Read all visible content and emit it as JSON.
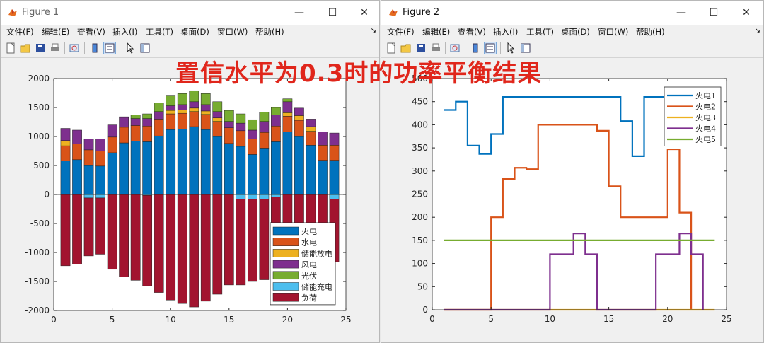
{
  "overlay_title": "置信水平为0.3时的功率平衡结果",
  "menu_labels": [
    "文件(F)",
    "编辑(E)",
    "查看(V)",
    "插入(I)",
    "工具(T)",
    "桌面(D)",
    "窗口(W)",
    "帮助(H)"
  ],
  "window_controls": {
    "minimize": "—",
    "maximize": "☐",
    "close": "✕"
  },
  "figure1": {
    "title": "Figure 1",
    "chart_data": {
      "type": "bar",
      "stacked": true,
      "x": [
        1,
        2,
        3,
        4,
        5,
        6,
        7,
        8,
        9,
        10,
        11,
        12,
        13,
        14,
        15,
        16,
        17,
        18,
        19,
        20,
        21,
        22,
        23,
        24
      ],
      "xlim": [
        0,
        25
      ],
      "ylim": [
        -2000,
        2000
      ],
      "xticks": [
        0,
        5,
        10,
        15,
        20,
        25
      ],
      "yticks": [
        -2000,
        -1500,
        -1000,
        -500,
        0,
        500,
        1000,
        1500,
        2000
      ],
      "legend_position": "bottom-right",
      "series": [
        {
          "name": "火电",
          "color": "#0072BD",
          "values": [
            580,
            600,
            500,
            490,
            720,
            890,
            920,
            910,
            1010,
            1120,
            1130,
            1170,
            1120,
            1000,
            880,
            830,
            690,
            800,
            910,
            1080,
            1000,
            850,
            590,
            590
          ]
        },
        {
          "name": "水电",
          "color": "#D95319",
          "values": [
            260,
            270,
            270,
            260,
            270,
            270,
            270,
            270,
            290,
            270,
            270,
            260,
            260,
            260,
            270,
            270,
            270,
            270,
            270,
            270,
            280,
            240,
            260,
            260
          ]
        },
        {
          "name": "储能放电",
          "color": "#EDB120",
          "values": [
            90,
            0,
            0,
            0,
            0,
            0,
            0,
            0,
            0,
            60,
            60,
            60,
            60,
            60,
            0,
            0,
            0,
            0,
            0,
            60,
            80,
            80,
            0,
            0
          ]
        },
        {
          "name": "风电",
          "color": "#7E2F8E",
          "values": [
            210,
            240,
            190,
            210,
            210,
            170,
            120,
            130,
            130,
            80,
            90,
            110,
            110,
            110,
            110,
            130,
            150,
            190,
            190,
            190,
            130,
            130,
            230,
            210
          ]
        },
        {
          "name": "光伏",
          "color": "#77AC30",
          "values": [
            0,
            0,
            0,
            0,
            0,
            10,
            60,
            80,
            150,
            170,
            190,
            190,
            190,
            170,
            190,
            160,
            180,
            160,
            130,
            50,
            0,
            0,
            0,
            0
          ]
        },
        {
          "name": "储能充电",
          "color": "#4DBEEE",
          "values": [
            0,
            0,
            -60,
            -60,
            0,
            0,
            0,
            -15,
            0,
            0,
            0,
            0,
            0,
            0,
            0,
            -80,
            -80,
            -80,
            -40,
            0,
            0,
            0,
            0,
            -80
          ]
        },
        {
          "name": "负荷",
          "color": "#A2142F",
          "values": [
            -1230,
            -1200,
            -1000,
            -970,
            -1290,
            -1420,
            -1480,
            -1560,
            -1690,
            -1820,
            -1880,
            -1940,
            -1840,
            -1720,
            -1560,
            -1480,
            -1420,
            -1390,
            -1350,
            -1440,
            -1480,
            -1290,
            -1190,
            -1080
          ]
        }
      ]
    }
  },
  "figure2": {
    "title": "Figure 2",
    "chart_data": {
      "type": "line",
      "step": true,
      "xlim": [
        0,
        25
      ],
      "ylim": [
        0,
        500
      ],
      "xticks": [
        0,
        5,
        10,
        15,
        20,
        25
      ],
      "yticks": [
        0,
        50,
        100,
        150,
        200,
        250,
        300,
        350,
        400,
        450,
        500
      ],
      "legend_position": "top-right",
      "series": [
        {
          "name": "火电1",
          "color": "#0072BD",
          "x": [
            1,
            2,
            3,
            4,
            5,
            6,
            7,
            8,
            9,
            10,
            11,
            12,
            13,
            14,
            15,
            16,
            17,
            18,
            19,
            20,
            21,
            22,
            23,
            24
          ],
          "values": [
            432,
            450,
            355,
            337,
            380,
            460,
            460,
            460,
            460,
            460,
            460,
            460,
            460,
            460,
            460,
            408,
            332,
            460,
            460,
            460,
            460,
            460,
            460,
            460
          ]
        },
        {
          "name": "火电2",
          "color": "#D95319",
          "x": [
            1,
            2,
            3,
            4,
            5,
            6,
            7,
            8,
            9,
            10,
            11,
            12,
            13,
            14,
            15,
            16,
            17,
            18,
            19,
            20,
            21,
            22
          ],
          "values": [
            0,
            0,
            0,
            0,
            200,
            283,
            307,
            304,
            400,
            400,
            400,
            400,
            400,
            387,
            267,
            200,
            200,
            200,
            200,
            347,
            210,
            0
          ]
        },
        {
          "name": "火电3",
          "color": "#EDB120",
          "x": [
            1,
            24
          ],
          "values": [
            0,
            0
          ]
        },
        {
          "name": "火电4",
          "color": "#7E2F8E",
          "x": [
            1,
            2,
            3,
            4,
            5,
            6,
            7,
            8,
            9,
            10,
            11,
            12,
            13,
            14,
            15,
            16,
            17,
            18,
            19,
            20,
            21,
            22,
            23
          ],
          "values": [
            0,
            0,
            0,
            0,
            0,
            0,
            0,
            0,
            0,
            120,
            120,
            165,
            120,
            0,
            0,
            0,
            0,
            0,
            120,
            120,
            165,
            120,
            0
          ]
        },
        {
          "name": "火电5",
          "color": "#77AC30",
          "x": [
            1,
            24
          ],
          "values": [
            150,
            150
          ]
        }
      ]
    }
  }
}
